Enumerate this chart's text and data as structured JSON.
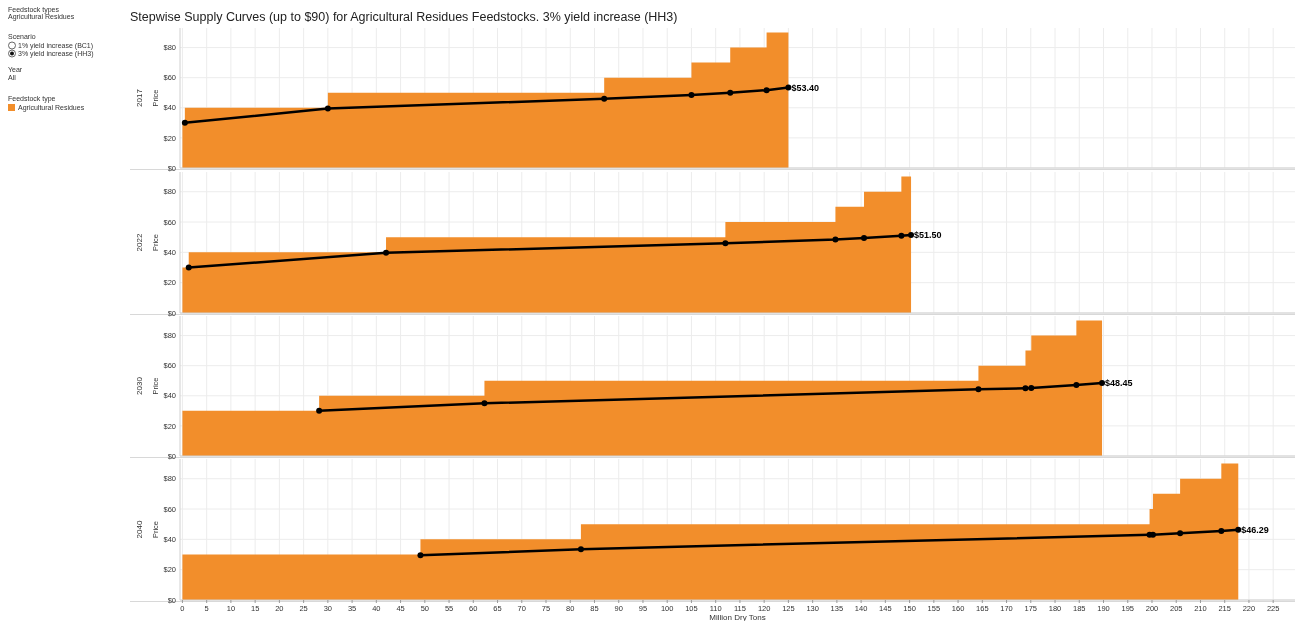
{
  "chart_data": [
    {
      "type": "area",
      "title": "Stepwise Supply Curves (up to $90) for Agricultural Residues Feedstocks.  3% yield increase (HH3)",
      "subtitle": "2017",
      "ylabel": "Price",
      "legend_title": "Feedstock type",
      "legend": "left",
      "annotations": [
        "Feedstock types",
        "Agricultural Residues",
        "Scenario",
        "1% yield increase (BC1)",
        "3% yield increase (HH3)",
        "Year",
        "All",
        {
          "text": "$53.40",
          "x": 125,
          "y": 53.4
        }
      ],
      "xlim": [
        -0.5,
        229.5
      ],
      "xticks": [
        0,
        5,
        10,
        15,
        20,
        25,
        30,
        35,
        40,
        45,
        50,
        55,
        60,
        65,
        70,
        75,
        80,
        85,
        90,
        95,
        100,
        105,
        110,
        115,
        120,
        125,
        130,
        135,
        140,
        145,
        150,
        155,
        160,
        165,
        170,
        175,
        180,
        185,
        190,
        195,
        200,
        205,
        210,
        215,
        220,
        225
      ],
      "ylim": [
        0,
        93
      ],
      "yticks": [
        {
          "value": 0,
          "label": "$0"
        },
        {
          "value": 20,
          "label": "$20"
        },
        {
          "value": 40,
          "label": "$40"
        },
        {
          "value": 60,
          "label": "$60"
        },
        {
          "value": 80,
          "label": "$80"
        }
      ],
      "grid": true,
      "tick_labels": "y",
      "series": [
        {
          "name": "Agricultural Residues",
          "color": "#f28e2b",
          "x": [
            0,
            0.5,
            0.5,
            30,
            30,
            87,
            87,
            105,
            105,
            113,
            113,
            120.5,
            120.5,
            125
          ],
          "values": [
            30,
            30,
            40,
            40,
            50,
            50,
            60,
            60,
            70,
            70,
            80,
            80,
            90,
            90
          ]
        },
        {
          "type": "line",
          "color": "#000000",
          "marker": "circle",
          "x": [
            0.5,
            30,
            87,
            105,
            113,
            120.5,
            125
          ],
          "values": [
            30,
            39.5,
            46,
            48.5,
            50,
            51.7,
            53.4
          ]
        }
      ]
    },
    {
      "type": "area",
      "subtitle": "2022",
      "ylabel": "Price",
      "annotations": [
        {
          "text": "$51.50",
          "x": 150.3,
          "y": 51.5
        }
      ],
      "xlim": [
        -0.5,
        229.5
      ],
      "xticks": [
        0,
        5,
        10,
        15,
        20,
        25,
        30,
        35,
        40,
        45,
        50,
        55,
        60,
        65,
        70,
        75,
        80,
        85,
        90,
        95,
        100,
        105,
        110,
        115,
        120,
        125,
        130,
        135,
        140,
        145,
        150,
        155,
        160,
        165,
        170,
        175,
        180,
        185,
        190,
        195,
        200,
        205,
        210,
        215,
        220,
        225
      ],
      "ylim": [
        0,
        93
      ],
      "yticks": [
        {
          "value": 0,
          "label": "$0"
        },
        {
          "value": 20,
          "label": "$20"
        },
        {
          "value": 40,
          "label": "$40"
        },
        {
          "value": 60,
          "label": "$60"
        },
        {
          "value": 80,
          "label": "$80"
        }
      ],
      "grid": true,
      "tick_labels": "y",
      "series": [
        {
          "color": "#f28e2b",
          "x": [
            0,
            1.3,
            1.3,
            42,
            42,
            112,
            112,
            134.7,
            134.7,
            140.6,
            140.6,
            148.3,
            148.3,
            150.3
          ],
          "values": [
            30,
            30,
            40,
            40,
            50,
            50,
            60,
            60,
            70,
            70,
            80,
            80,
            90,
            90
          ]
        },
        {
          "type": "line",
          "color": "#000000",
          "marker": "circle",
          "x": [
            1.3,
            42,
            112,
            134.7,
            140.6,
            148.3,
            150.3
          ],
          "values": [
            30,
            39.7,
            46,
            48.4,
            49.5,
            51,
            51.5
          ]
        }
      ]
    },
    {
      "type": "area",
      "subtitle": "2030",
      "ylabel": "Price",
      "annotations": [
        {
          "text": "$48.45",
          "x": 189.7,
          "y": 48.45
        }
      ],
      "xlim": [
        -0.5,
        229.5
      ],
      "xticks": [
        0,
        5,
        10,
        15,
        20,
        25,
        30,
        35,
        40,
        45,
        50,
        55,
        60,
        65,
        70,
        75,
        80,
        85,
        90,
        95,
        100,
        105,
        110,
        115,
        120,
        125,
        130,
        135,
        140,
        145,
        150,
        155,
        160,
        165,
        170,
        175,
        180,
        185,
        190,
        195,
        200,
        205,
        210,
        215,
        220,
        225
      ],
      "ylim": [
        0,
        93
      ],
      "yticks": [
        {
          "value": 0,
          "label": "$0"
        },
        {
          "value": 20,
          "label": "$20"
        },
        {
          "value": 40,
          "label": "$40"
        },
        {
          "value": 60,
          "label": "$60"
        },
        {
          "value": 80,
          "label": "$80"
        }
      ],
      "grid": true,
      "tick_labels": "y",
      "series": [
        {
          "color": "#f28e2b",
          "x": [
            0,
            28.2,
            28.2,
            62.3,
            62.3,
            164.2,
            164.2,
            173.9,
            173.9,
            175.1,
            175.1,
            184.4,
            184.4,
            189.7
          ],
          "values": [
            30,
            30,
            40,
            40,
            50,
            50,
            60,
            60,
            70,
            70,
            80,
            80,
            90,
            90
          ]
        },
        {
          "type": "line",
          "color": "#000000",
          "marker": "circle",
          "x": [
            28.2,
            62.3,
            164.2,
            173.9,
            175.1,
            184.4,
            189.7
          ],
          "values": [
            30,
            35,
            44.3,
            45,
            45.1,
            47.2,
            48.45
          ]
        }
      ]
    },
    {
      "type": "area",
      "subtitle": "2040",
      "ylabel": "Price",
      "xlabel": "Million Dry Tons",
      "annotations": [
        {
          "text": "$46.29",
          "x": 217.8,
          "y": 46.29
        }
      ],
      "xlim": [
        -0.5,
        229.5
      ],
      "xticks": [
        0,
        5,
        10,
        15,
        20,
        25,
        30,
        35,
        40,
        45,
        50,
        55,
        60,
        65,
        70,
        75,
        80,
        85,
        90,
        95,
        100,
        105,
        110,
        115,
        120,
        125,
        130,
        135,
        140,
        145,
        150,
        155,
        160,
        165,
        170,
        175,
        180,
        185,
        190,
        195,
        200,
        205,
        210,
        215,
        220,
        225
      ],
      "ylim": [
        0,
        93
      ],
      "yticks": [
        {
          "value": 0,
          "label": "$0"
        },
        {
          "value": 20,
          "label": "$20"
        },
        {
          "value": 40,
          "label": "$40"
        },
        {
          "value": 60,
          "label": "$60"
        },
        {
          "value": 80,
          "label": "$80"
        }
      ],
      "grid": true,
      "series": [
        {
          "color": "#f28e2b",
          "x": [
            0,
            49.1,
            49.1,
            82.2,
            82.2,
            199.5,
            199.5,
            200.2,
            200.2,
            205.8,
            205.8,
            214.3,
            214.3,
            217.8
          ],
          "values": [
            30,
            30,
            40,
            40,
            50,
            50,
            60,
            60,
            70,
            70,
            80,
            80,
            90,
            90
          ]
        },
        {
          "type": "line",
          "color": "#000000",
          "marker": "circle",
          "x": [
            49.1,
            82.2,
            199.5,
            200.2,
            205.8,
            214.3,
            217.8
          ],
          "values": [
            29.5,
            33.5,
            43,
            43,
            44,
            45.5,
            46.29
          ]
        }
      ]
    }
  ]
}
